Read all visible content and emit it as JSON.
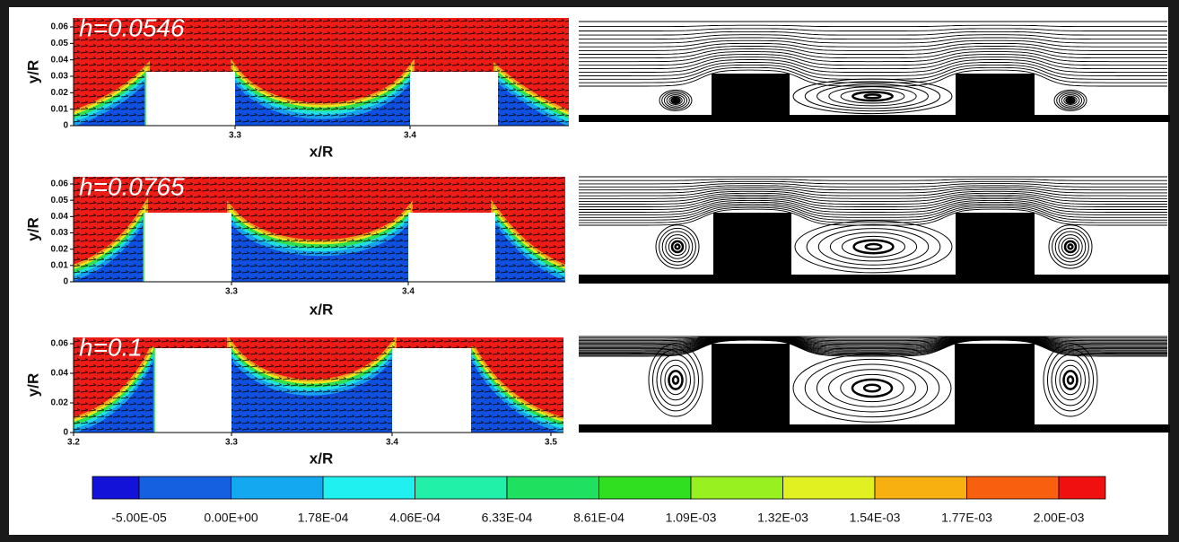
{
  "panels": [
    {
      "label": "h=0.0546",
      "y_label": "y/R",
      "x_label": "x/R",
      "yticks": [
        "0",
        "0.01",
        "0.02",
        "0.03",
        "0.04",
        "0.05",
        "0.06"
      ],
      "xticks": [
        "3.3",
        "3.4"
      ]
    },
    {
      "label": "h=0.0765",
      "y_label": "y/R",
      "x_label": "x/R",
      "yticks": [
        "0",
        "0.01",
        "0.02",
        "0.03",
        "0.04",
        "0.05",
        "0.06"
      ],
      "xticks": [
        "3.3",
        "3.4"
      ]
    },
    {
      "label": "h=0.1",
      "y_label": "y/R",
      "x_label": "x/R",
      "yticks": [
        "0",
        "0.02",
        "0.04",
        "0.06"
      ],
      "xticks": [
        "3.2",
        "3.3",
        "3.4",
        "3.5"
      ]
    }
  ],
  "colorbar": {
    "labels": [
      "-5.00E-05",
      "0.00E+00",
      "1.78E-04",
      "4.06E-04",
      "6.33E-04",
      "8.61E-04",
      "1.09E-03",
      "1.32E-03",
      "1.54E-03",
      "1.77E-03",
      "2.00E-03"
    ]
  }
}
